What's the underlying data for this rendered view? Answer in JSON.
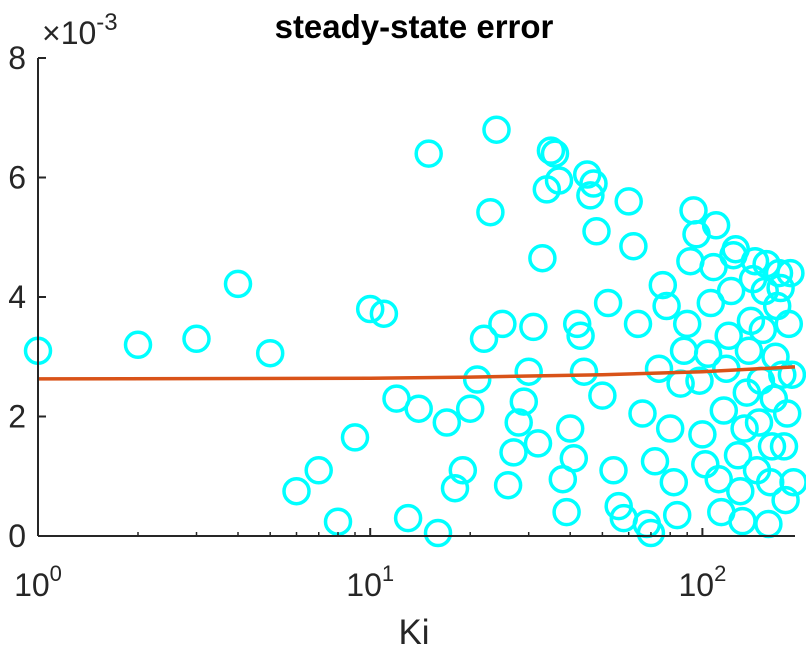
{
  "chart_data": {
    "type": "scatter",
    "title": "steady-state error",
    "xlabel": "Ki",
    "ylabel": "",
    "x_scale": "log",
    "xlim": [
      1,
      190
    ],
    "ylim": [
      0,
      0.008
    ],
    "y_multiplier_label": {
      "base": "×10",
      "exponent": "-3"
    },
    "x_ticks": [
      {
        "value": 1,
        "base": "10",
        "exp": "0"
      },
      {
        "value": 10,
        "base": "10",
        "exp": "1"
      },
      {
        "value": 100,
        "base": "10",
        "exp": "2"
      }
    ],
    "y_ticks": [
      {
        "value": 0,
        "label": "0"
      },
      {
        "value": 0.002,
        "label": "2"
      },
      {
        "value": 0.004,
        "label": "4"
      },
      {
        "value": 0.006,
        "label": "6"
      },
      {
        "value": 0.008,
        "label": "8"
      }
    ],
    "grid": false,
    "colors": {
      "marker": "#00ffff",
      "fit_line": "#d95319",
      "axis": "#262626"
    },
    "series": [
      {
        "kind": "points",
        "points": [
          [
            1.0,
            0.0031
          ],
          [
            2.0,
            0.0032
          ],
          [
            3.0,
            0.0033
          ],
          [
            4.0,
            0.00422
          ],
          [
            5.0,
            0.00306
          ],
          [
            6.0,
            0.00075
          ],
          [
            7.0,
            0.0011
          ],
          [
            8.0,
            0.00024
          ],
          [
            9.0,
            0.00165
          ],
          [
            10.0,
            0.0038
          ],
          [
            11.0,
            0.00372
          ],
          [
            12.0,
            0.0023
          ],
          [
            13.0,
            0.0003
          ],
          [
            14.0,
            0.00213
          ],
          [
            15.0,
            0.0064
          ],
          [
            16.0,
            5e-05
          ],
          [
            17.0,
            0.0019
          ],
          [
            18.0,
            0.0008
          ],
          [
            19.0,
            0.0011
          ],
          [
            20.0,
            0.00213
          ],
          [
            21.0,
            0.00262
          ],
          [
            22.0,
            0.0033
          ],
          [
            23.0,
            0.00542
          ],
          [
            24.0,
            0.0068
          ],
          [
            25.0,
            0.00355
          ],
          [
            26.0,
            0.00085
          ],
          [
            27.0,
            0.0014
          ],
          [
            28.0,
            0.0019
          ],
          [
            29.0,
            0.00225
          ],
          [
            30.0,
            0.00275
          ],
          [
            31.0,
            0.0035
          ],
          [
            32.0,
            0.00155
          ],
          [
            33.0,
            0.00465
          ],
          [
            34.0,
            0.0058
          ],
          [
            35.0,
            0.00645
          ],
          [
            36.0,
            0.0064
          ],
          [
            37.0,
            0.00595
          ],
          [
            38.0,
            0.00095
          ],
          [
            39.0,
            0.0004
          ],
          [
            40.0,
            0.0018
          ],
          [
            41.0,
            0.0013
          ],
          [
            42.0,
            0.00355
          ],
          [
            43.0,
            0.00335
          ],
          [
            44.0,
            0.00275
          ],
          [
            45.0,
            0.00605
          ],
          [
            46.0,
            0.0057
          ],
          [
            47.0,
            0.0059
          ],
          [
            48.0,
            0.0051
          ],
          [
            50.0,
            0.00235
          ],
          [
            52.0,
            0.0039
          ],
          [
            54.0,
            0.0011
          ],
          [
            56.0,
            0.0005
          ],
          [
            58.0,
            0.0003
          ],
          [
            60.0,
            0.0056
          ],
          [
            62.0,
            0.00485
          ],
          [
            64.0,
            0.00355
          ],
          [
            66.0,
            0.00205
          ],
          [
            68.0,
            0.0002
          ],
          [
            70.0,
            5e-05
          ],
          [
            72.0,
            0.00125
          ],
          [
            74.0,
            0.0028
          ],
          [
            76.0,
            0.0042
          ],
          [
            78.0,
            0.00385
          ],
          [
            80.0,
            0.0018
          ],
          [
            82.0,
            0.0009
          ],
          [
            84.0,
            0.00035
          ],
          [
            86.0,
            0.00255
          ],
          [
            88.0,
            0.0031
          ],
          [
            90.0,
            0.00355
          ],
          [
            92.0,
            0.0046
          ],
          [
            94.0,
            0.00545
          ],
          [
            96.0,
            0.00505
          ],
          [
            98.0,
            0.0026
          ],
          [
            100.0,
            0.0017
          ],
          [
            102.0,
            0.0012
          ],
          [
            104.0,
            0.00305
          ],
          [
            106.0,
            0.0039
          ],
          [
            108.0,
            0.0045
          ],
          [
            110.0,
            0.0052
          ],
          [
            112.0,
            0.00095
          ],
          [
            114.0,
            0.0004
          ],
          [
            116.0,
            0.0021
          ],
          [
            118.0,
            0.0028
          ],
          [
            120.0,
            0.00335
          ],
          [
            122.0,
            0.0041
          ],
          [
            124.0,
            0.0047
          ],
          [
            126.0,
            0.0048
          ],
          [
            128.0,
            0.00135
          ],
          [
            130.0,
            0.00075
          ],
          [
            132.0,
            0.00025
          ],
          [
            134.0,
            0.0018
          ],
          [
            136.0,
            0.0024
          ],
          [
            138.0,
            0.0031
          ],
          [
            140.0,
            0.0036
          ],
          [
            142.0,
            0.0043
          ],
          [
            144.0,
            0.0046
          ],
          [
            146.0,
            0.0011
          ],
          [
            148.0,
            0.0019
          ],
          [
            150.0,
            0.0026
          ],
          [
            152.0,
            0.00345
          ],
          [
            154.0,
            0.0041
          ],
          [
            156.0,
            0.00455
          ],
          [
            158.0,
            0.0002
          ],
          [
            160.0,
            0.0009
          ],
          [
            162.0,
            0.0015
          ],
          [
            164.0,
            0.0023
          ],
          [
            166.0,
            0.003
          ],
          [
            168.0,
            0.00385
          ],
          [
            170.0,
            0.0044
          ],
          [
            172.0,
            0.00415
          ],
          [
            174.0,
            0.0027
          ],
          [
            176.0,
            0.0015
          ],
          [
            178.0,
            0.0006
          ],
          [
            180.0,
            0.00205
          ],
          [
            182.0,
            0.00355
          ],
          [
            184.0,
            0.0044
          ],
          [
            186.0,
            0.0027
          ],
          [
            188.0,
            0.0009
          ]
        ]
      },
      {
        "kind": "fit_line",
        "x": [
          1,
          10,
          20,
          50,
          100,
          190
        ],
        "y": [
          0.00263,
          0.00264,
          0.00266,
          0.0027,
          0.00275,
          0.00283
        ]
      }
    ]
  }
}
